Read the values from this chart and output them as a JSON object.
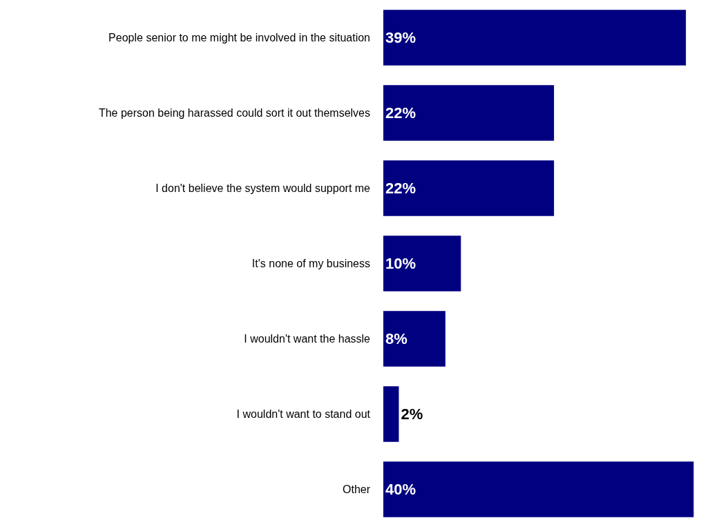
{
  "chart_data": {
    "type": "bar",
    "orientation": "horizontal",
    "categories": [
      "People senior to me might be involved in the situation",
      "The person being harassed could sort it out themselves",
      "I don't believe the system would support me",
      "It's none of my business",
      "I wouldn't want the hassle",
      "I wouldn't want to stand out",
      "Other"
    ],
    "values": [
      39,
      22,
      22,
      10,
      8,
      2,
      40
    ],
    "value_labels": [
      "39%",
      "22%",
      "22%",
      "10%",
      "8%",
      "2%",
      "40%"
    ],
    "color": "#000080",
    "tick_labels": "y"
  }
}
